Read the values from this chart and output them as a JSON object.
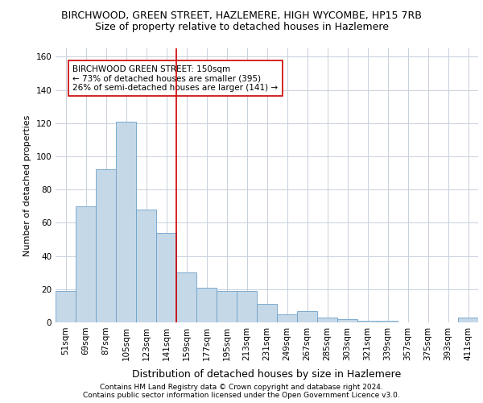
{
  "title1": "BIRCHWOOD, GREEN STREET, HAZLEMERE, HIGH WYCOMBE, HP15 7RB",
  "title2": "Size of property relative to detached houses in Hazlemere",
  "xlabel": "Distribution of detached houses by size in Hazlemere",
  "ylabel": "Number of detached properties",
  "categories": [
    "51sqm",
    "69sqm",
    "87sqm",
    "105sqm",
    "123sqm",
    "141sqm",
    "159sqm",
    "177sqm",
    "195sqm",
    "213sqm",
    "231sqm",
    "249sqm",
    "267sqm",
    "285sqm",
    "303sqm",
    "321sqm",
    "339sqm",
    "357sqm",
    "375sqm",
    "393sqm",
    "411sqm"
  ],
  "values": [
    19,
    70,
    92,
    121,
    68,
    54,
    30,
    21,
    19,
    19,
    11,
    5,
    7,
    3,
    2,
    1,
    1,
    0,
    0,
    0,
    3
  ],
  "bar_color": "#C5D8E8",
  "bar_edge_color": "#6CA0C8",
  "vline_x": 5.5,
  "vline_color": "#CC0000",
  "annotation_text": "BIRCHWOOD GREEN STREET: 150sqm\n← 73% of detached houses are smaller (395)\n26% of semi-detached houses are larger (141) →",
  "annotation_box_color": "#ffffff",
  "annotation_box_edge_color": "#CC0000",
  "ylim": [
    0,
    165
  ],
  "yticks": [
    0,
    20,
    40,
    60,
    80,
    100,
    120,
    140,
    160
  ],
  "grid_color": "#C8D0DC",
  "footnote1": "Contains HM Land Registry data © Crown copyright and database right 2024.",
  "footnote2": "Contains public sector information licensed under the Open Government Licence v3.0.",
  "title1_fontsize": 9,
  "title2_fontsize": 9,
  "xlabel_fontsize": 9,
  "ylabel_fontsize": 8,
  "tick_fontsize": 7.5,
  "annotation_fontsize": 7.5,
  "footnote_fontsize": 6.5
}
